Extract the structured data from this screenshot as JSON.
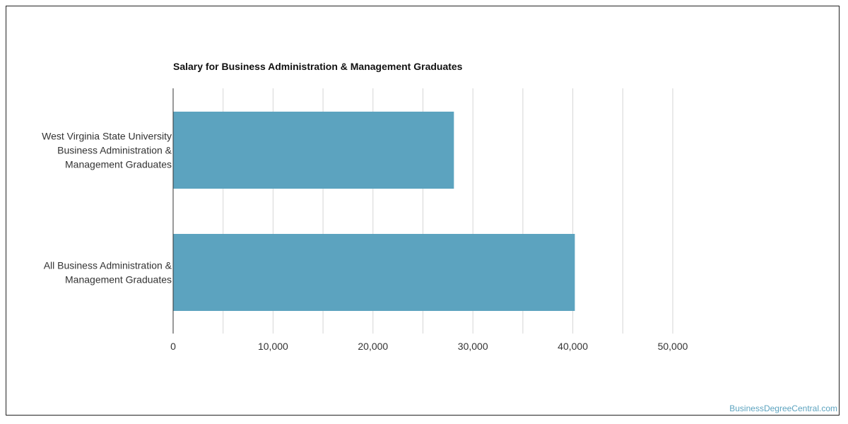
{
  "chart_data": {
    "type": "bar",
    "orientation": "horizontal",
    "title": "Salary for Business Administration & Management Graduates",
    "categories": [
      [
        "West Virginia State University",
        "Business Administration &",
        "Management Graduates"
      ],
      [
        "All Business Administration &",
        "Management Graduates"
      ]
    ],
    "values": [
      28100,
      40200
    ],
    "xlim": [
      0,
      55000
    ],
    "x_ticks": [
      0,
      10000,
      20000,
      30000,
      40000,
      50000
    ],
    "x_tick_labels": [
      "0",
      "10,000",
      "20,000",
      "30,000",
      "40,000",
      "50,000"
    ],
    "grid": true,
    "legend": "none",
    "xlabel": "",
    "ylabel": ""
  },
  "colors": {
    "bar": "#5ca3bf",
    "grid": "#d6d6d6",
    "axis": "#333333",
    "watermark": "#5ca3bf"
  },
  "watermark": "BusinessDegreeCentral.com"
}
